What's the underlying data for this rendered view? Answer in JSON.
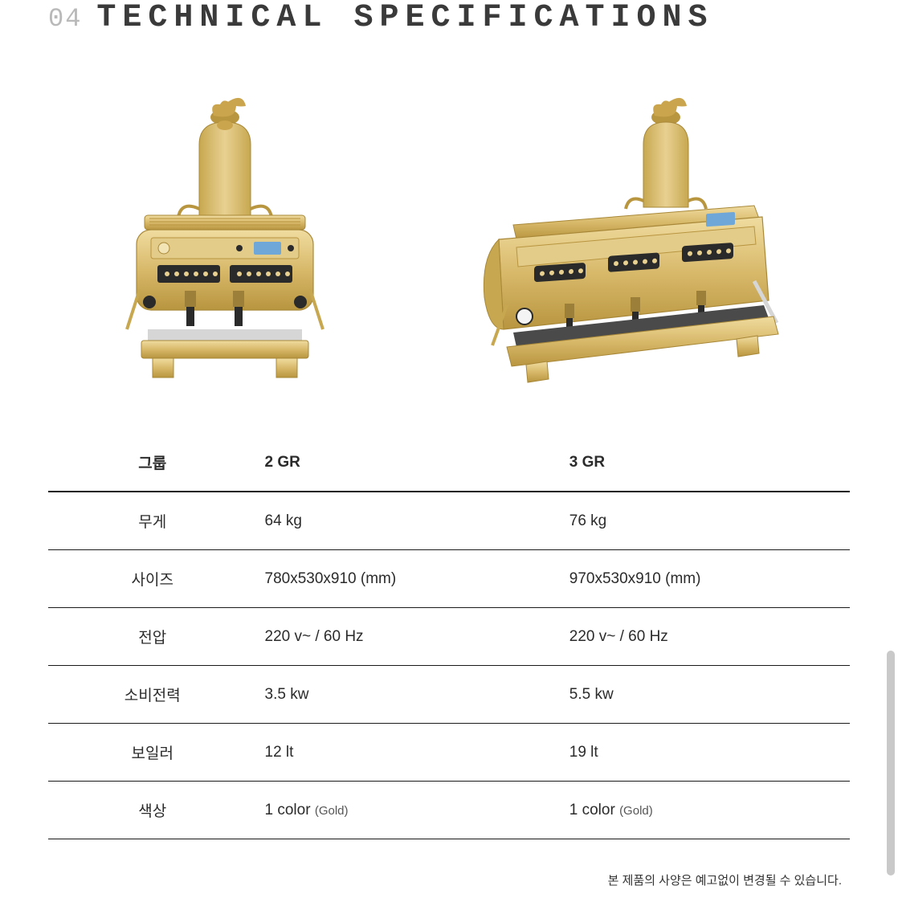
{
  "header": {
    "number": "04",
    "title": "TECHNICAL SPECIFICATIONS",
    "title_color": "#3a3a3a",
    "number_color": "#b9b9b9"
  },
  "products": {
    "left_label": "2 GR espresso machine (gold)",
    "right_label": "3 GR espresso machine (gold)",
    "gold_main": "#d8b96a",
    "gold_light": "#e8d091",
    "gold_dark": "#b8953f",
    "panel_dark": "#2a2a2a",
    "lcd_blue": "#6fa8d8"
  },
  "spec_table": {
    "columns": [
      "그룹",
      "2 GR",
      "3 GR"
    ],
    "rows": [
      {
        "label": "무게",
        "v2": "64 kg",
        "v3": "76 kg"
      },
      {
        "label": "사이즈",
        "v2": "780x530x910 (mm)",
        "v3": "970x530x910 (mm)"
      },
      {
        "label": "전압",
        "v2": "220 v~ / 60 Hz",
        "v3": "220 v~ / 60 Hz"
      },
      {
        "label": "소비전력",
        "v2": "3.5 kw",
        "v3": "5.5 kw"
      },
      {
        "label": "보일러",
        "v2": "12 lt",
        "v3": "19 lt"
      },
      {
        "label": "색상",
        "v2": "1 color",
        "v2_sub": "(Gold)",
        "v3": "1 color",
        "v3_sub": "(Gold)"
      }
    ],
    "header_border": "#1a1a1a",
    "row_border": "#1a1a1a",
    "font_size": 19
  },
  "footnote": "본 제품의 사양은 예고없이 변경될 수 있습니다."
}
